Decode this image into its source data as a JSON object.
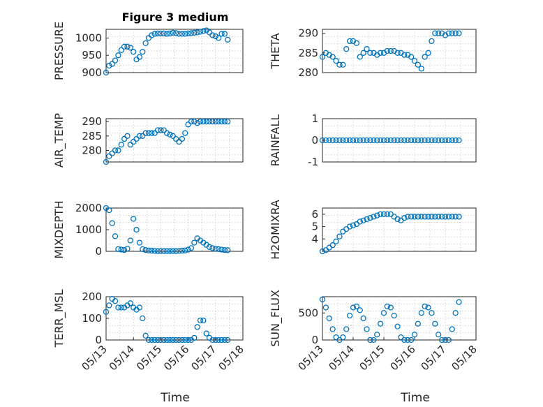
{
  "figure": {
    "title": "Figure 3 medium",
    "xlabel": "Time"
  },
  "chart_data": [
    {
      "type": "scatter",
      "ylabel": "PRESSURE",
      "ylim": [
        900,
        1025
      ],
      "yticks": [
        "900",
        "950",
        "1000"
      ],
      "xlim": [
        0,
        4.5
      ],
      "xticks": [],
      "x": [
        0,
        0.1,
        0.2,
        0.3,
        0.4,
        0.5,
        0.6,
        0.7,
        0.8,
        0.9,
        1.0,
        1.1,
        1.2,
        1.3,
        1.4,
        1.5,
        1.6,
        1.7,
        1.8,
        1.9,
        2.0,
        2.1,
        2.2,
        2.3,
        2.4,
        2.5,
        2.6,
        2.7,
        2.8,
        2.9,
        3.0,
        3.1,
        3.2,
        3.3,
        3.4,
        3.5,
        3.6,
        3.7,
        3.8,
        3.9,
        4.0
      ],
      "y": [
        900,
        920,
        925,
        935,
        950,
        965,
        975,
        975,
        972,
        960,
        938,
        945,
        960,
        985,
        1000,
        1008,
        1012,
        1013,
        1013,
        1013,
        1012,
        1013,
        1015,
        1014,
        1012,
        1012,
        1012,
        1013,
        1014,
        1015,
        1016,
        1018,
        1020,
        1022,
        1016,
        1008,
        1005,
        1000,
        1012,
        1012,
        995
      ]
    },
    {
      "type": "scatter",
      "ylabel": "THETA",
      "ylim": [
        280,
        291
      ],
      "yticks": [
        "280",
        "285",
        "290"
      ],
      "xlim": [
        0,
        4.5
      ],
      "xticks": [],
      "x": [
        0,
        0.1,
        0.2,
        0.3,
        0.4,
        0.5,
        0.6,
        0.7,
        0.8,
        0.9,
        1.0,
        1.1,
        1.2,
        1.3,
        1.4,
        1.5,
        1.6,
        1.7,
        1.8,
        1.9,
        2.0,
        2.1,
        2.2,
        2.3,
        2.4,
        2.5,
        2.6,
        2.7,
        2.8,
        2.9,
        3.0,
        3.1,
        3.2,
        3.3,
        3.4,
        3.5,
        3.6,
        3.7,
        3.8,
        3.9,
        4.0
      ],
      "y": [
        284,
        285,
        284.5,
        284,
        283,
        282,
        282,
        286,
        288,
        288,
        287.5,
        284,
        285,
        286,
        285,
        285,
        284.5,
        285,
        285,
        285.5,
        285.5,
        285.5,
        285,
        285,
        284.5,
        284.5,
        284,
        283,
        282,
        281,
        284,
        285,
        288,
        290,
        290,
        290,
        289.5,
        290,
        290,
        290,
        290
      ]
    },
    {
      "type": "scatter",
      "ylabel": "AIR_TEMP",
      "ylim": [
        276,
        291
      ],
      "yticks": [
        "280",
        "285",
        "290"
      ],
      "xlim": [
        0,
        4.5
      ],
      "xticks": [],
      "x": [
        0,
        0.1,
        0.2,
        0.3,
        0.4,
        0.5,
        0.6,
        0.7,
        0.8,
        0.9,
        1.0,
        1.1,
        1.2,
        1.3,
        1.4,
        1.5,
        1.6,
        1.7,
        1.8,
        1.9,
        2.0,
        2.1,
        2.2,
        2.3,
        2.4,
        2.5,
        2.6,
        2.7,
        2.8,
        2.9,
        3.0,
        3.1,
        3.2,
        3.3,
        3.4,
        3.5,
        3.6,
        3.7,
        3.8,
        3.9,
        4.0
      ],
      "y": [
        276,
        278,
        279,
        280,
        280,
        282,
        284,
        285,
        282,
        283,
        284,
        285,
        285,
        286,
        286,
        286,
        286,
        287,
        287,
        287,
        286,
        285.5,
        285,
        284,
        283,
        284,
        286,
        289,
        290,
        290,
        289.5,
        290,
        290,
        290,
        290,
        290,
        290,
        290,
        290,
        290,
        290
      ]
    },
    {
      "type": "scatter",
      "ylabel": "RAINFALL",
      "ylim": [
        -1,
        1
      ],
      "yticks": [
        "-1",
        "0",
        "1"
      ],
      "xlim": [
        0,
        4.5
      ],
      "xticks": [],
      "x": [
        0,
        0.1,
        0.2,
        0.3,
        0.4,
        0.5,
        0.6,
        0.7,
        0.8,
        0.9,
        1.0,
        1.1,
        1.2,
        1.3,
        1.4,
        1.5,
        1.6,
        1.7,
        1.8,
        1.9,
        2.0,
        2.1,
        2.2,
        2.3,
        2.4,
        2.5,
        2.6,
        2.7,
        2.8,
        2.9,
        3.0,
        3.1,
        3.2,
        3.3,
        3.4,
        3.5,
        3.6,
        3.7,
        3.8,
        3.9,
        4.0
      ],
      "y": [
        0,
        0,
        0,
        0,
        0,
        0,
        0,
        0,
        0,
        0,
        0,
        0,
        0,
        0,
        0,
        0,
        0,
        0,
        0,
        0,
        0,
        0,
        0,
        0,
        0,
        0,
        0,
        0,
        0,
        0,
        0,
        0,
        0,
        0,
        0,
        0,
        0,
        0,
        0,
        0,
        0
      ]
    },
    {
      "type": "scatter",
      "ylabel": "MIXDEPTH",
      "ylim": [
        0,
        2000
      ],
      "yticks": [
        "0",
        "1000",
        "2000"
      ],
      "xlim": [
        0,
        4.5
      ],
      "xticks": [],
      "x": [
        0,
        0.1,
        0.2,
        0.3,
        0.4,
        0.5,
        0.6,
        0.7,
        0.8,
        0.9,
        1.0,
        1.1,
        1.2,
        1.3,
        1.4,
        1.5,
        1.6,
        1.7,
        1.8,
        1.9,
        2.0,
        2.1,
        2.2,
        2.3,
        2.4,
        2.5,
        2.6,
        2.7,
        2.8,
        2.9,
        3.0,
        3.1,
        3.2,
        3.3,
        3.4,
        3.5,
        3.6,
        3.7,
        3.8,
        3.9,
        4.0
      ],
      "y": [
        2000,
        1900,
        1300,
        700,
        100,
        80,
        60,
        120,
        500,
        1500,
        1000,
        400,
        100,
        60,
        40,
        30,
        20,
        10,
        10,
        10,
        10,
        10,
        10,
        10,
        20,
        30,
        40,
        80,
        150,
        400,
        600,
        500,
        400,
        300,
        200,
        150,
        120,
        100,
        80,
        60,
        50
      ]
    },
    {
      "type": "scatter",
      "ylabel": "H2OMIXRA",
      "ylim": [
        3,
        6.5
      ],
      "yticks": [
        "4",
        "5",
        "6"
      ],
      "xlim": [
        0,
        4.5
      ],
      "xticks": [],
      "x": [
        0,
        0.1,
        0.2,
        0.3,
        0.4,
        0.5,
        0.6,
        0.7,
        0.8,
        0.9,
        1.0,
        1.1,
        1.2,
        1.3,
        1.4,
        1.5,
        1.6,
        1.7,
        1.8,
        1.9,
        2.0,
        2.1,
        2.2,
        2.3,
        2.4,
        2.5,
        2.6,
        2.7,
        2.8,
        2.9,
        3.0,
        3.1,
        3.2,
        3.3,
        3.4,
        3.5,
        3.6,
        3.7,
        3.8,
        3.9,
        4.0
      ],
      "y": [
        3,
        3.1,
        3.3,
        3.5,
        3.8,
        4.2,
        4.6,
        4.8,
        5.0,
        5.1,
        5.2,
        5.4,
        5.5,
        5.6,
        5.7,
        5.8,
        5.9,
        6.0,
        6.0,
        6.0,
        6.0,
        5.8,
        5.6,
        5.5,
        5.7,
        5.8,
        5.8,
        5.8,
        5.8,
        5.8,
        5.8,
        5.8,
        5.8,
        5.8,
        5.8,
        5.8,
        5.8,
        5.8,
        5.8,
        5.8,
        5.8
      ]
    },
    {
      "type": "scatter",
      "ylabel": "TERR_MSL",
      "ylim": [
        0,
        200
      ],
      "yticks": [
        "0",
        "100",
        "200"
      ],
      "xlim": [
        0,
        4.5
      ],
      "xticks": [
        "05/13",
        "05/14",
        "05/15",
        "05/16",
        "05/17",
        "05/18"
      ],
      "x": [
        0,
        0.1,
        0.2,
        0.3,
        0.4,
        0.5,
        0.6,
        0.7,
        0.8,
        0.9,
        1.0,
        1.1,
        1.2,
        1.3,
        1.4,
        1.5,
        1.6,
        1.7,
        1.8,
        1.9,
        2.0,
        2.1,
        2.2,
        2.3,
        2.4,
        2.5,
        2.6,
        2.7,
        2.8,
        2.9,
        3.0,
        3.1,
        3.2,
        3.3,
        3.4,
        3.5,
        3.6,
        3.7,
        3.8,
        3.9,
        4.0
      ],
      "y": [
        130,
        160,
        190,
        180,
        150,
        150,
        150,
        160,
        170,
        150,
        140,
        150,
        100,
        20,
        0,
        0,
        0,
        0,
        0,
        0,
        0,
        0,
        0,
        0,
        0,
        0,
        0,
        0,
        0,
        10,
        60,
        90,
        90,
        30,
        10,
        0,
        0,
        0,
        0,
        0,
        0
      ]
    },
    {
      "type": "scatter",
      "ylabel": "SUN_FLUX",
      "ylim": [
        0,
        800
      ],
      "yticks": [
        "0",
        "500"
      ],
      "xlim": [
        0,
        4.5
      ],
      "xticks": [
        "05/13",
        "05/14",
        "05/15",
        "05/16",
        "05/17",
        "05/18"
      ],
      "x": [
        0,
        0.1,
        0.2,
        0.3,
        0.4,
        0.5,
        0.6,
        0.7,
        0.8,
        0.9,
        1.0,
        1.1,
        1.2,
        1.3,
        1.4,
        1.5,
        1.6,
        1.7,
        1.8,
        1.9,
        2.0,
        2.1,
        2.2,
        2.3,
        2.4,
        2.5,
        2.6,
        2.7,
        2.8,
        2.9,
        3.0,
        3.1,
        3.2,
        3.3,
        3.4,
        3.5,
        3.6,
        3.7,
        3.8,
        3.9,
        4.0
      ],
      "y": [
        750,
        600,
        400,
        200,
        50,
        0,
        50,
        200,
        450,
        600,
        620,
        550,
        400,
        200,
        0,
        0,
        100,
        300,
        500,
        620,
        600,
        450,
        250,
        50,
        0,
        0,
        0,
        100,
        300,
        500,
        620,
        600,
        500,
        300,
        100,
        0,
        0,
        0,
        200,
        500,
        700
      ]
    }
  ]
}
